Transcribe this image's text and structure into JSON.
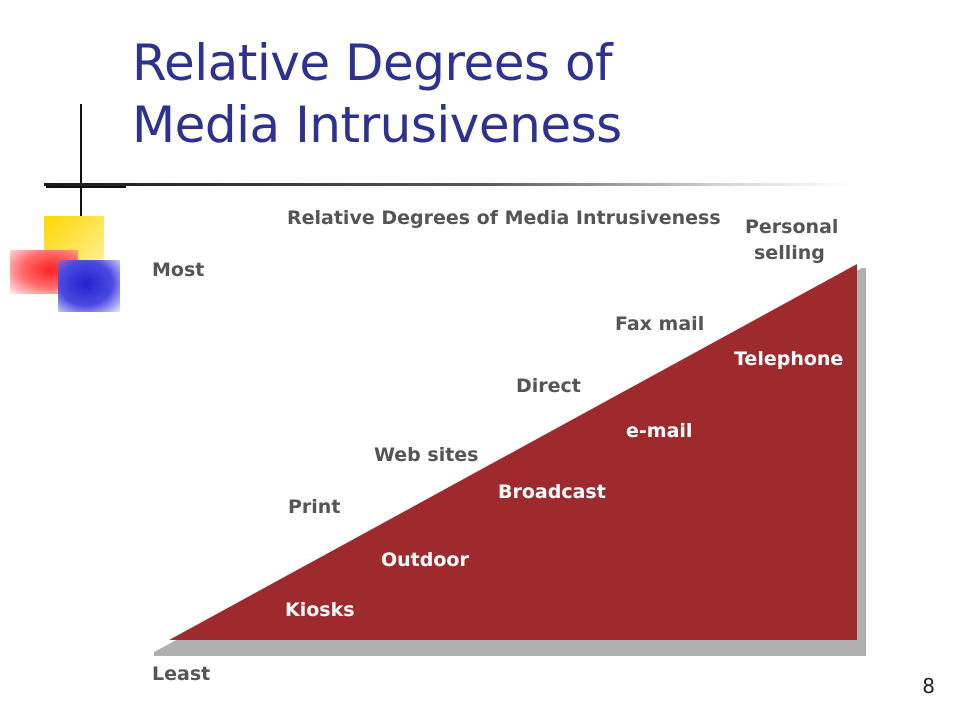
{
  "slide": {
    "title_line1": "Relative Degrees of",
    "title_line2": "Media Intrusiveness",
    "slide_number": "8"
  },
  "diagram": {
    "heading": "Relative Degrees of Media Intrusiveness",
    "axis": {
      "top": "Most",
      "bottom": "Least"
    },
    "outside_labels": [
      "Print",
      "Web sites",
      "Direct",
      "Fax mail"
    ],
    "peak_label_line1": "Personal",
    "peak_label_line2": "selling",
    "inside_labels": [
      "Kiosks",
      "Outdoor",
      "Broadcast",
      "e-mail",
      "Telephone"
    ],
    "colors": {
      "fill": "#9e2a2e",
      "title": "#2d3192",
      "text": "#555555"
    }
  }
}
